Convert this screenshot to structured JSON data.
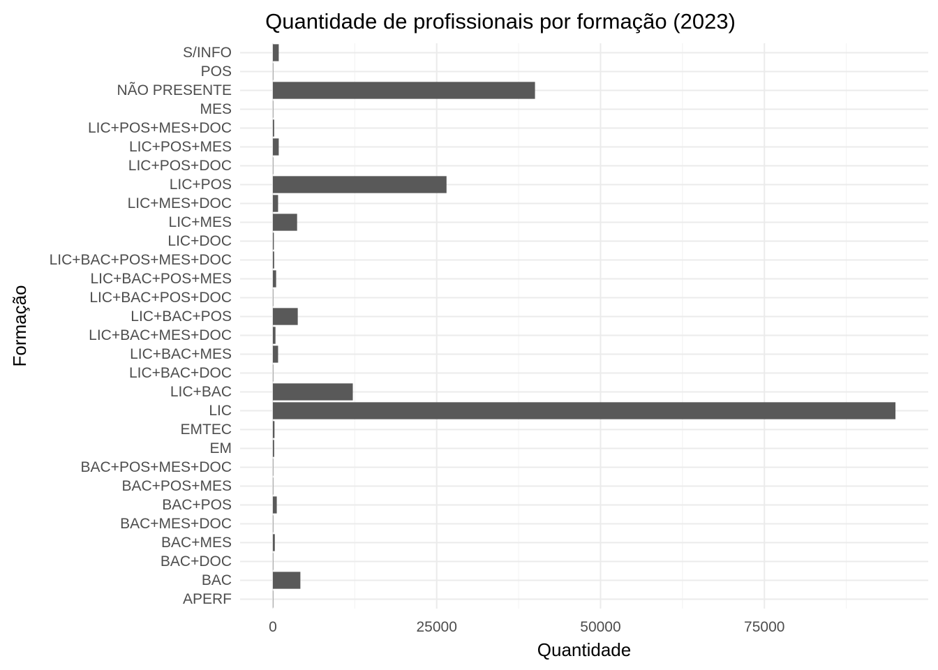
{
  "chart_data": {
    "type": "bar",
    "orientation": "horizontal",
    "title": "Quantidade de profissionais por formação (2023)",
    "xlabel": "Quantidade",
    "ylabel": "Formação",
    "categories": [
      "APERF",
      "BAC",
      "BAC+DOC",
      "BAC+MES",
      "BAC+MES+DOC",
      "BAC+POS",
      "BAC+POS+MES",
      "BAC+POS+MES+DOC",
      "EM",
      "EMTEC",
      "LIC",
      "LIC+BAC",
      "LIC+BAC+DOC",
      "LIC+BAC+MES",
      "LIC+BAC+MES+DOC",
      "LIC+BAC+POS",
      "LIC+BAC+POS+DOC",
      "LIC+BAC+POS+MES",
      "LIC+BAC+POS+MES+DOC",
      "LIC+DOC",
      "LIC+MES",
      "LIC+MES+DOC",
      "LIC+POS",
      "LIC+POS+DOC",
      "LIC+POS+MES",
      "LIC+POS+MES+DOC",
      "MES",
      "NÃO PRESENTE",
      "POS",
      "S/INFO"
    ],
    "values": [
      20,
      4200,
      30,
      300,
      20,
      600,
      20,
      10,
      200,
      250,
      95000,
      12200,
      50,
      800,
      400,
      3800,
      30,
      500,
      200,
      150,
      3700,
      800,
      26500,
      50,
      900,
      200,
      20,
      40000,
      30,
      900
    ],
    "xlim": [
      -5000,
      100000
    ],
    "x_ticks": [
      0,
      25000,
      50000,
      75000
    ],
    "x_tick_labels": [
      "0",
      "25000",
      "50000",
      "75000"
    ],
    "grid": true,
    "legend": "none",
    "bar_color": "#595959"
  }
}
